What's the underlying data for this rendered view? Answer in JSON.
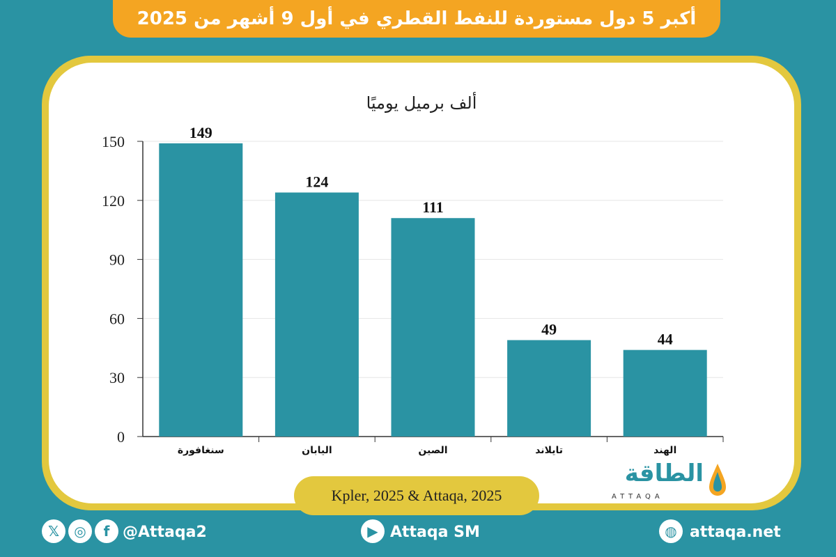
{
  "header": {
    "title": "أكبر 5 دول مستوردة للنفط القطري في أول 9 أشهر من 2025"
  },
  "chart_data": {
    "type": "bar",
    "ylabel": "ألف برميل يوميًا",
    "categories": [
      "سنغافورة",
      "اليابان",
      "الصين",
      "تايلاند",
      "الهند"
    ],
    "values": [
      149,
      124,
      111,
      49,
      44
    ],
    "yticks": [
      0,
      30,
      60,
      90,
      120,
      150
    ],
    "ylim": [
      0,
      150
    ],
    "grid": true,
    "bar_color": "#2a93a3"
  },
  "source": "Kpler, 2025 & Attaqa, 2025",
  "logo": {
    "text": "الطاقة",
    "sub": "ATTAQA"
  },
  "footer": {
    "social_handle": "@Attaqa2",
    "youtube": "Attaqa SM",
    "website": "attaqa.net"
  },
  "colors": {
    "background": "#2a93a3",
    "accent": "#f4a522",
    "frame": "#e3c83e"
  }
}
